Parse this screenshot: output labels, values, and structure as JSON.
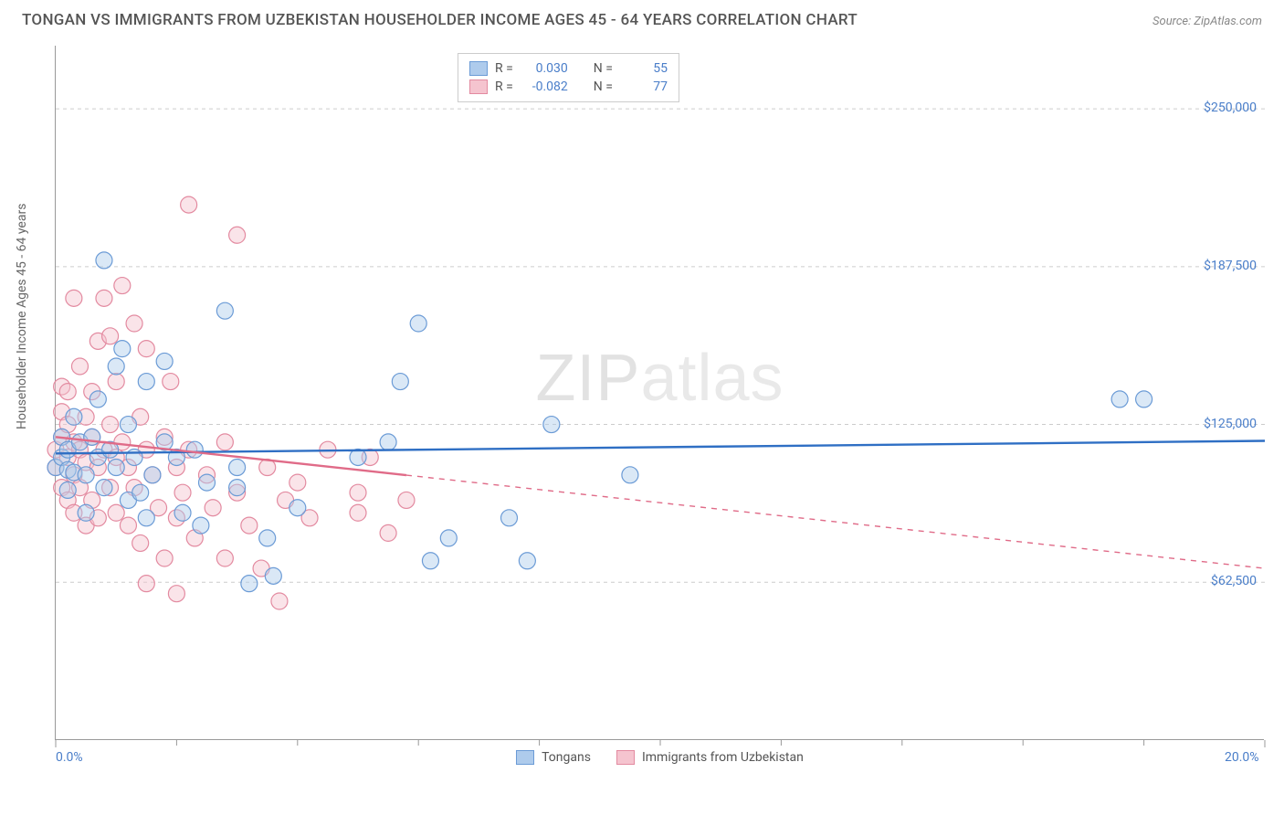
{
  "title": "TONGAN VS IMMIGRANTS FROM UZBEKISTAN HOUSEHOLDER INCOME AGES 45 - 64 YEARS CORRELATION CHART",
  "source": "Source: ZipAtlas.com",
  "y_axis_label": "Householder Income Ages 45 - 64 years",
  "watermark": "ZIPatlas",
  "chart": {
    "type": "scatter",
    "xlim": [
      0,
      20
    ],
    "ylim": [
      0,
      275000
    ],
    "x_ticks": [
      {
        "v": 0,
        "label": "0.0%"
      },
      {
        "v": 20,
        "label": "20.0%"
      }
    ],
    "x_minor_ticks": [
      2,
      4,
      6,
      8,
      10,
      12,
      14,
      16,
      18
    ],
    "y_ticks": [
      {
        "v": 62500,
        "label": "$62,500"
      },
      {
        "v": 125000,
        "label": "$125,000"
      },
      {
        "v": 187500,
        "label": "$187,500"
      },
      {
        "v": 250000,
        "label": "$250,000"
      }
    ],
    "grid_color": "#cccccc",
    "grid_dash": "4,4",
    "background": "#ffffff",
    "marker_radius": 9,
    "marker_opacity": 0.45,
    "series": [
      {
        "name": "Tongans",
        "fill_color": "#aecbec",
        "stroke_color": "#6b9bd6",
        "line_color": "#2f6fc4",
        "r_value": "0.030",
        "n_value": "55",
        "trend": {
          "x1": 0,
          "y1": 113500,
          "x2": 20,
          "y2": 118500,
          "solid_until": 20
        },
        "points": [
          [
            0.0,
            108000
          ],
          [
            0.1,
            112000
          ],
          [
            0.1,
            120000
          ],
          [
            0.2,
            107000
          ],
          [
            0.2,
            115000
          ],
          [
            0.2,
            99000
          ],
          [
            0.3,
            106000
          ],
          [
            0.3,
            128000
          ],
          [
            0.4,
            118000
          ],
          [
            0.5,
            105000
          ],
          [
            0.5,
            90000
          ],
          [
            0.6,
            120000
          ],
          [
            0.7,
            135000
          ],
          [
            0.7,
            112000
          ],
          [
            0.8,
            190000
          ],
          [
            0.8,
            100000
          ],
          [
            0.9,
            115000
          ],
          [
            1.0,
            108000
          ],
          [
            1.0,
            148000
          ],
          [
            1.1,
            155000
          ],
          [
            1.2,
            125000
          ],
          [
            1.2,
            95000
          ],
          [
            1.3,
            112000
          ],
          [
            1.4,
            98000
          ],
          [
            1.5,
            142000
          ],
          [
            1.5,
            88000
          ],
          [
            1.6,
            105000
          ],
          [
            1.8,
            118000
          ],
          [
            1.8,
            150000
          ],
          [
            2.0,
            112000
          ],
          [
            2.1,
            90000
          ],
          [
            2.3,
            115000
          ],
          [
            2.4,
            85000
          ],
          [
            2.5,
            102000
          ],
          [
            2.8,
            170000
          ],
          [
            3.0,
            100000
          ],
          [
            3.0,
            108000
          ],
          [
            3.2,
            62000
          ],
          [
            3.5,
            80000
          ],
          [
            3.6,
            65000
          ],
          [
            4.0,
            92000
          ],
          [
            5.0,
            112000
          ],
          [
            5.5,
            118000
          ],
          [
            5.7,
            142000
          ],
          [
            6.0,
            165000
          ],
          [
            6.2,
            71000
          ],
          [
            6.5,
            80000
          ],
          [
            7.5,
            88000
          ],
          [
            7.8,
            71000
          ],
          [
            8.2,
            125000
          ],
          [
            9.5,
            105000
          ],
          [
            17.6,
            135000
          ],
          [
            18.0,
            135000
          ]
        ]
      },
      {
        "name": "Immigrants from Uzbekistan",
        "fill_color": "#f5c4cf",
        "stroke_color": "#e38aa0",
        "line_color": "#e06b88",
        "r_value": "-0.082",
        "n_value": "77",
        "trend": {
          "x1": 0,
          "y1": 120000,
          "x2": 20,
          "y2": 68000,
          "solid_until": 5.8
        },
        "points": [
          [
            0.0,
            115000
          ],
          [
            0.0,
            108000
          ],
          [
            0.1,
            120000
          ],
          [
            0.1,
            130000
          ],
          [
            0.1,
            100000
          ],
          [
            0.1,
            140000
          ],
          [
            0.2,
            112000
          ],
          [
            0.2,
            95000
          ],
          [
            0.2,
            125000
          ],
          [
            0.2,
            138000
          ],
          [
            0.3,
            118000
          ],
          [
            0.3,
            175000
          ],
          [
            0.3,
            105000
          ],
          [
            0.3,
            90000
          ],
          [
            0.4,
            115000
          ],
          [
            0.4,
            148000
          ],
          [
            0.4,
            100000
          ],
          [
            0.5,
            128000
          ],
          [
            0.5,
            110000
          ],
          [
            0.5,
            85000
          ],
          [
            0.6,
            120000
          ],
          [
            0.6,
            138000
          ],
          [
            0.6,
            95000
          ],
          [
            0.7,
            158000
          ],
          [
            0.7,
            108000
          ],
          [
            0.7,
            88000
          ],
          [
            0.8,
            115000
          ],
          [
            0.8,
            175000
          ],
          [
            0.9,
            125000
          ],
          [
            0.9,
            100000
          ],
          [
            0.9,
            160000
          ],
          [
            1.0,
            112000
          ],
          [
            1.0,
            90000
          ],
          [
            1.0,
            142000
          ],
          [
            1.1,
            118000
          ],
          [
            1.1,
            180000
          ],
          [
            1.2,
            108000
          ],
          [
            1.2,
            85000
          ],
          [
            1.3,
            100000
          ],
          [
            1.3,
            165000
          ],
          [
            1.4,
            128000
          ],
          [
            1.4,
            78000
          ],
          [
            1.5,
            115000
          ],
          [
            1.5,
            155000
          ],
          [
            1.5,
            62000
          ],
          [
            1.6,
            105000
          ],
          [
            1.7,
            92000
          ],
          [
            1.8,
            120000
          ],
          [
            1.8,
            72000
          ],
          [
            1.9,
            142000
          ],
          [
            2.0,
            108000
          ],
          [
            2.0,
            88000
          ],
          [
            2.0,
            58000
          ],
          [
            2.1,
            98000
          ],
          [
            2.2,
            115000
          ],
          [
            2.2,
            212000
          ],
          [
            2.3,
            80000
          ],
          [
            2.5,
            105000
          ],
          [
            2.6,
            92000
          ],
          [
            2.8,
            118000
          ],
          [
            2.8,
            72000
          ],
          [
            3.0,
            200000
          ],
          [
            3.0,
            98000
          ],
          [
            3.2,
            85000
          ],
          [
            3.4,
            68000
          ],
          [
            3.5,
            108000
          ],
          [
            3.7,
            55000
          ],
          [
            3.8,
            95000
          ],
          [
            4.0,
            102000
          ],
          [
            4.2,
            88000
          ],
          [
            4.5,
            115000
          ],
          [
            5.0,
            90000
          ],
          [
            5.0,
            98000
          ],
          [
            5.2,
            112000
          ],
          [
            5.5,
            82000
          ],
          [
            5.8,
            95000
          ]
        ]
      }
    ]
  },
  "legend": {
    "r_label": "R =",
    "n_label": "N ="
  }
}
